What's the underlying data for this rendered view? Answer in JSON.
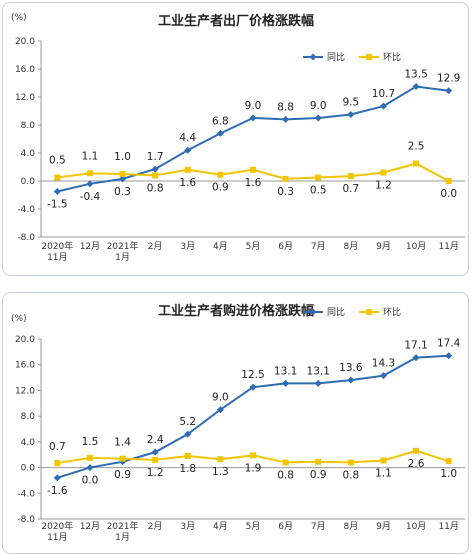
{
  "colors": {
    "yoy": "#2e6db4",
    "mom": "#f2c500",
    "grid": "#d9d9d9",
    "axis": "#999999"
  },
  "chart_data": [
    {
      "type": "line",
      "title": "工业生产者出厂价格涨跌幅",
      "unit": "(%)",
      "categories": [
        "2020年\n11月",
        "12月",
        "2021年\n1月",
        "2月",
        "3月",
        "4月",
        "5月",
        "6月",
        "7月",
        "8月",
        "9月",
        "10月",
        "11月"
      ],
      "ylim": [
        -8.0,
        20.0
      ],
      "yticks": [
        "20.0",
        "16.0",
        "12.0",
        "8.0",
        "4.0",
        "0.0",
        "-4.0",
        "-8.0"
      ],
      "legend_position": "top-right",
      "grid": false,
      "series": [
        {
          "name": "同比",
          "color_key": "yoy",
          "marker": "diamond",
          "values": [
            -1.5,
            -0.4,
            0.3,
            1.7,
            4.4,
            6.8,
            9.0,
            8.8,
            9.0,
            9.5,
            10.7,
            13.5,
            12.9
          ],
          "labels": [
            "-1.5",
            "-0.4",
            "0.3",
            "1.7",
            "4.4",
            "6.8",
            "9.0",
            "8.8",
            "9.0",
            "9.5",
            "10.7",
            "13.5",
            "12.9"
          ]
        },
        {
          "name": "环比",
          "color_key": "mom",
          "marker": "square",
          "values": [
            0.5,
            1.1,
            1.0,
            0.8,
            1.6,
            0.9,
            1.6,
            0.3,
            0.5,
            0.7,
            1.2,
            2.5,
            0.0
          ],
          "labels": [
            "0.5",
            "1.1",
            "1.0",
            "0.8",
            "1.6",
            "0.9",
            "1.6",
            "0.3",
            "0.5",
            "0.7",
            "1.2",
            "2.5",
            "0.0"
          ]
        }
      ]
    },
    {
      "type": "line",
      "title": "工业生产者购进价格涨跌幅",
      "unit": "(%)",
      "categories": [
        "2020年\n11月",
        "12月",
        "2021年\n1月",
        "2月",
        "3月",
        "4月",
        "5月",
        "6月",
        "7月",
        "8月",
        "9月",
        "10月",
        "11月"
      ],
      "ylim": [
        -8.0,
        20.0
      ],
      "yticks": [
        "20.0",
        "16.0",
        "12.0",
        "8.0",
        "4.0",
        "0.0",
        "-4.0",
        "-8.0"
      ],
      "legend_position": "top-right",
      "grid": false,
      "series": [
        {
          "name": "同比",
          "color_key": "yoy",
          "marker": "diamond",
          "values": [
            -1.6,
            0.0,
            0.9,
            2.4,
            5.2,
            9.0,
            12.5,
            13.1,
            13.1,
            13.6,
            14.3,
            17.1,
            17.4
          ],
          "labels": [
            "-1.6",
            "0.0",
            "0.9",
            "2.4",
            "5.2",
            "9.0",
            "12.5",
            "13.1",
            "13.1",
            "13.6",
            "14.3",
            "17.1",
            "17.4"
          ]
        },
        {
          "name": "环比",
          "color_key": "mom",
          "marker": "square",
          "values": [
            0.7,
            1.5,
            1.4,
            1.2,
            1.8,
            1.3,
            1.9,
            0.8,
            0.9,
            0.8,
            1.1,
            2.6,
            1.0
          ],
          "labels": [
            "0.7",
            "1.5",
            "1.4",
            "1.2",
            "1.8",
            "1.3",
            "1.9",
            "0.8",
            "0.9",
            "0.8",
            "1.1",
            "2.6",
            "1.0"
          ]
        }
      ]
    }
  ]
}
